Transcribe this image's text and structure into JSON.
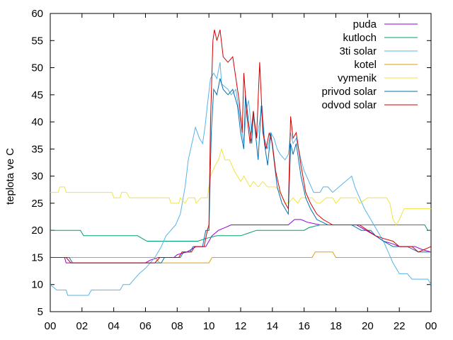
{
  "chart_data": {
    "type": "line",
    "title": "",
    "xlabel": "",
    "ylabel": "teplota ve C",
    "xlim": [
      0,
      24
    ],
    "ylim": [
      5,
      60
    ],
    "grid": false,
    "legend_position": "top-right",
    "xticks": [
      "00",
      "02",
      "04",
      "06",
      "08",
      "10",
      "12",
      "14",
      "16",
      "18",
      "20",
      "22",
      "00"
    ],
    "yticks": [
      5,
      10,
      15,
      20,
      25,
      30,
      35,
      40,
      45,
      50,
      55,
      60
    ],
    "series": [
      {
        "name": "puda",
        "color": "#9400D3",
        "points": [
          [
            0,
            15
          ],
          [
            0.9,
            15
          ],
          [
            1,
            14
          ],
          [
            3,
            14
          ],
          [
            6,
            14
          ],
          [
            6.3,
            14.5
          ],
          [
            6.8,
            15
          ],
          [
            7.8,
            15
          ],
          [
            8,
            15.5
          ],
          [
            8.6,
            16
          ],
          [
            9.2,
            17
          ],
          [
            9.8,
            17
          ],
          [
            10.2,
            19
          ],
          [
            10.6,
            20
          ],
          [
            11,
            20.5
          ],
          [
            11.4,
            21
          ],
          [
            13,
            21
          ],
          [
            15,
            21
          ],
          [
            15.4,
            22
          ],
          [
            15.8,
            22
          ],
          [
            16.2,
            21.5
          ],
          [
            17,
            21
          ],
          [
            18,
            21
          ],
          [
            19.3,
            21
          ],
          [
            19.9,
            20
          ],
          [
            20.5,
            19
          ],
          [
            21,
            18
          ],
          [
            21.6,
            17.5
          ],
          [
            22,
            17
          ],
          [
            23,
            17
          ],
          [
            23.4,
            16.5
          ],
          [
            24,
            16
          ]
        ]
      },
      {
        "name": "kutloch",
        "color": "#009E73",
        "points": [
          [
            0,
            20
          ],
          [
            1.9,
            20
          ],
          [
            2.1,
            19
          ],
          [
            5.5,
            19
          ],
          [
            5.8,
            18.5
          ],
          [
            6.1,
            18
          ],
          [
            9,
            18
          ],
          [
            9.3,
            18
          ],
          [
            9.8,
            18.5
          ],
          [
            10.5,
            19
          ],
          [
            12,
            19
          ],
          [
            12.5,
            19.5
          ],
          [
            13,
            20
          ],
          [
            16,
            20
          ],
          [
            16.3,
            20.5
          ],
          [
            17,
            21
          ],
          [
            23.6,
            21
          ],
          [
            23.8,
            20
          ],
          [
            24,
            20
          ]
        ]
      },
      {
        "name": "3ti solar",
        "color": "#56B4E9",
        "points": [
          [
            0,
            10
          ],
          [
            0.4,
            9
          ],
          [
            1,
            9
          ],
          [
            1.1,
            8
          ],
          [
            2.4,
            8
          ],
          [
            2.6,
            9
          ],
          [
            4.4,
            9
          ],
          [
            4.6,
            10
          ],
          [
            5,
            10
          ],
          [
            5.3,
            11
          ],
          [
            5.6,
            12
          ],
          [
            6,
            13
          ],
          [
            6.6,
            15
          ],
          [
            7,
            17
          ],
          [
            7.3,
            19
          ],
          [
            7.6,
            20
          ],
          [
            7.9,
            21
          ],
          [
            8.2,
            23
          ],
          [
            8.5,
            28
          ],
          [
            8.7,
            33
          ],
          [
            9,
            37
          ],
          [
            9.15,
            39
          ],
          [
            9.4,
            37
          ],
          [
            9.6,
            36
          ],
          [
            9.75,
            39
          ],
          [
            9.9,
            43
          ],
          [
            10.1,
            48
          ],
          [
            10.3,
            49
          ],
          [
            10.5,
            48
          ],
          [
            10.7,
            51
          ],
          [
            10.8,
            47
          ],
          [
            11.2,
            46
          ],
          [
            11.4,
            45
          ],
          [
            11.7,
            46
          ],
          [
            12,
            40
          ],
          [
            12.2,
            36
          ],
          [
            12.35,
            42
          ],
          [
            12.5,
            44
          ],
          [
            12.7,
            38
          ],
          [
            12.8,
            41
          ],
          [
            13,
            37
          ],
          [
            13.2,
            40
          ],
          [
            13.35,
            43
          ],
          [
            13.5,
            37
          ],
          [
            13.7,
            35
          ],
          [
            13.9,
            38
          ],
          [
            14.1,
            37
          ],
          [
            14.3,
            35
          ],
          [
            14.5,
            34
          ],
          [
            14.8,
            33
          ],
          [
            15,
            34
          ],
          [
            15.15,
            38
          ],
          [
            15.3,
            36
          ],
          [
            15.5,
            37
          ],
          [
            15.8,
            33
          ],
          [
            16,
            31
          ],
          [
            16.3,
            29
          ],
          [
            16.6,
            27
          ],
          [
            17,
            27
          ],
          [
            17.2,
            28
          ],
          [
            17.5,
            28
          ],
          [
            17.8,
            27
          ],
          [
            18.2,
            28
          ],
          [
            18.6,
            29
          ],
          [
            19,
            30
          ],
          [
            19.2,
            28
          ],
          [
            19.5,
            26
          ],
          [
            19.8,
            24
          ],
          [
            20.2,
            22
          ],
          [
            20.6,
            20
          ],
          [
            21,
            18
          ],
          [
            21.3,
            16
          ],
          [
            21.6,
            14
          ],
          [
            22,
            12
          ],
          [
            22.5,
            12
          ],
          [
            22.8,
            11
          ],
          [
            23.8,
            11
          ],
          [
            24,
            10
          ]
        ]
      },
      {
        "name": "kotel",
        "color": "#E69F00",
        "points": [
          [
            0,
            15
          ],
          [
            1.5,
            15
          ],
          [
            6.6,
            15
          ],
          [
            6.9,
            14
          ],
          [
            10,
            14
          ],
          [
            10.2,
            15
          ],
          [
            15,
            15
          ],
          [
            16.5,
            15
          ],
          [
            16.7,
            16
          ],
          [
            17.8,
            16
          ],
          [
            18,
            15
          ],
          [
            24,
            15
          ]
        ]
      },
      {
        "name": "vymenik",
        "color": "#F0E442",
        "points": [
          [
            0,
            27
          ],
          [
            0.5,
            27
          ],
          [
            0.6,
            28
          ],
          [
            0.9,
            28
          ],
          [
            1,
            27
          ],
          [
            3.9,
            27
          ],
          [
            4,
            26
          ],
          [
            4.4,
            26
          ],
          [
            4.5,
            27
          ],
          [
            4.8,
            27
          ],
          [
            5,
            26
          ],
          [
            7.5,
            26
          ],
          [
            7.6,
            25
          ],
          [
            8.1,
            25
          ],
          [
            8.2,
            26
          ],
          [
            8.5,
            25
          ],
          [
            8.7,
            26
          ],
          [
            9.1,
            26
          ],
          [
            9.2,
            25
          ],
          [
            9.5,
            26
          ],
          [
            9.9,
            26
          ],
          [
            10.1,
            30
          ],
          [
            10.4,
            32
          ],
          [
            10.6,
            33
          ],
          [
            10.8,
            35
          ],
          [
            11,
            33
          ],
          [
            11.3,
            33
          ],
          [
            11.6,
            31
          ],
          [
            11.8,
            30
          ],
          [
            12,
            29
          ],
          [
            12.2,
            30
          ],
          [
            12.4,
            29
          ],
          [
            12.6,
            28
          ],
          [
            12.8,
            29
          ],
          [
            13.1,
            28
          ],
          [
            13.4,
            29
          ],
          [
            13.7,
            28
          ],
          [
            14.2,
            28
          ],
          [
            14.5,
            27
          ],
          [
            14.8,
            25
          ],
          [
            15,
            25
          ],
          [
            15.3,
            26
          ],
          [
            15.6,
            25
          ],
          [
            15.8,
            26
          ],
          [
            16.5,
            26
          ],
          [
            16.8,
            25
          ],
          [
            17,
            25
          ],
          [
            17.4,
            26
          ],
          [
            17.8,
            26
          ],
          [
            18,
            25
          ],
          [
            18.3,
            26
          ],
          [
            19.3,
            26
          ],
          [
            19.5,
            25
          ],
          [
            20,
            26
          ],
          [
            21.2,
            26
          ],
          [
            21.4,
            25
          ],
          [
            21.6,
            22
          ],
          [
            21.8,
            21
          ],
          [
            22,
            22
          ],
          [
            22.3,
            24
          ],
          [
            24,
            24
          ]
        ]
      },
      {
        "name": "privod solar",
        "color": "#0072B2",
        "points": [
          [
            0,
            15
          ],
          [
            1.2,
            15
          ],
          [
            1.4,
            14
          ],
          [
            7,
            14
          ],
          [
            7.2,
            15
          ],
          [
            8.2,
            15
          ],
          [
            8.4,
            16
          ],
          [
            8.8,
            16
          ],
          [
            9,
            17
          ],
          [
            9.6,
            17
          ],
          [
            9.8,
            20
          ],
          [
            10,
            20
          ],
          [
            10.15,
            38
          ],
          [
            10.3,
            46
          ],
          [
            10.5,
            45
          ],
          [
            10.7,
            48
          ],
          [
            10.9,
            46
          ],
          [
            11.2,
            45
          ],
          [
            11.5,
            46
          ],
          [
            11.8,
            43
          ],
          [
            12,
            38
          ],
          [
            12.2,
            35
          ],
          [
            12.3,
            45
          ],
          [
            12.5,
            40
          ],
          [
            12.7,
            36
          ],
          [
            12.8,
            42
          ],
          [
            13,
            36
          ],
          [
            13.1,
            33
          ],
          [
            13.3,
            43
          ],
          [
            13.5,
            36
          ],
          [
            13.7,
            32
          ],
          [
            13.9,
            38
          ],
          [
            14.1,
            33
          ],
          [
            14.3,
            28
          ],
          [
            14.6,
            25
          ],
          [
            14.8,
            24
          ],
          [
            15,
            23
          ],
          [
            15.15,
            36
          ],
          [
            15.3,
            34
          ],
          [
            15.5,
            36
          ],
          [
            15.8,
            30
          ],
          [
            16.1,
            26
          ],
          [
            16.4,
            24
          ],
          [
            16.8,
            22
          ],
          [
            17.5,
            21
          ],
          [
            18.2,
            21
          ],
          [
            19,
            21
          ],
          [
            19.6,
            20
          ],
          [
            20.2,
            20
          ],
          [
            20.5,
            19
          ],
          [
            21,
            18
          ],
          [
            21.6,
            17
          ],
          [
            22,
            17
          ],
          [
            22.5,
            17
          ],
          [
            23.2,
            16
          ],
          [
            24,
            16
          ]
        ]
      },
      {
        "name": "odvod solar",
        "color": "#D00000",
        "points": [
          [
            0,
            15
          ],
          [
            1,
            15
          ],
          [
            1.3,
            14
          ],
          [
            3,
            14
          ],
          [
            6.6,
            14
          ],
          [
            6.9,
            15
          ],
          [
            8.1,
            15
          ],
          [
            8.3,
            16
          ],
          [
            8.9,
            16
          ],
          [
            9.1,
            17
          ],
          [
            9.7,
            17
          ],
          [
            9.9,
            20
          ],
          [
            10,
            21
          ],
          [
            10.1,
            40
          ],
          [
            10.25,
            55
          ],
          [
            10.35,
            57
          ],
          [
            10.5,
            55
          ],
          [
            10.7,
            57
          ],
          [
            10.9,
            52
          ],
          [
            11.2,
            51
          ],
          [
            11.5,
            52
          ],
          [
            11.7,
            48
          ],
          [
            11.9,
            44
          ],
          [
            12.1,
            38
          ],
          [
            12.2,
            49
          ],
          [
            12.4,
            41
          ],
          [
            12.6,
            36
          ],
          [
            12.8,
            42
          ],
          [
            13,
            37
          ],
          [
            13.2,
            51
          ],
          [
            13.4,
            38
          ],
          [
            13.6,
            35
          ],
          [
            13.8,
            38
          ],
          [
            14,
            36
          ],
          [
            14.2,
            31
          ],
          [
            14.5,
            27
          ],
          [
            14.8,
            25
          ],
          [
            15,
            24
          ],
          [
            15.15,
            41
          ],
          [
            15.3,
            37
          ],
          [
            15.5,
            38
          ],
          [
            15.8,
            32
          ],
          [
            16.1,
            27
          ],
          [
            16.4,
            25
          ],
          [
            16.8,
            23
          ],
          [
            17.2,
            22
          ],
          [
            17.8,
            21
          ],
          [
            19.5,
            21
          ],
          [
            20,
            20
          ],
          [
            20.5,
            19
          ],
          [
            21,
            18.5
          ],
          [
            21.6,
            18
          ],
          [
            22,
            17
          ],
          [
            22.8,
            17
          ],
          [
            23.2,
            16
          ],
          [
            24,
            17
          ]
        ]
      }
    ]
  }
}
